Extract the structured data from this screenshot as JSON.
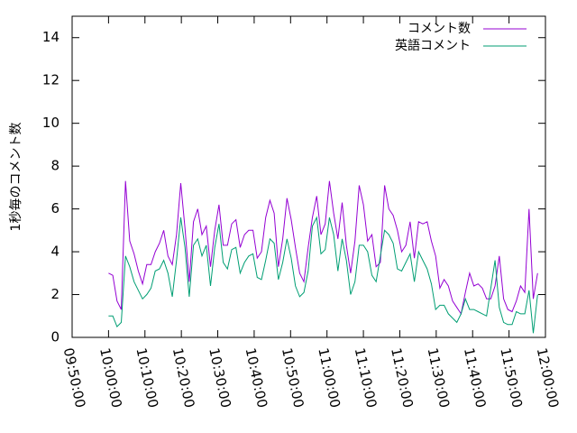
{
  "chart_data": {
    "type": "line",
    "ylabel": "1秒毎のコメント数",
    "x": [
      "10:00:00",
      "10:01:10",
      "10:02:20",
      "10:03:30",
      "10:04:40",
      "10:05:50",
      "10:07:00",
      "10:08:10",
      "10:09:20",
      "10:10:30",
      "10:11:40",
      "10:12:50",
      "10:14:00",
      "10:15:10",
      "10:16:20",
      "10:17:30",
      "10:18:40",
      "10:19:50",
      "10:21:00",
      "10:22:10",
      "10:23:20",
      "10:24:30",
      "10:25:40",
      "10:26:50",
      "10:28:00",
      "10:29:10",
      "10:30:20",
      "10:31:30",
      "10:32:40",
      "10:33:50",
      "10:35:00",
      "10:36:10",
      "10:37:20",
      "10:38:30",
      "10:39:40",
      "10:40:50",
      "10:42:00",
      "10:43:10",
      "10:44:20",
      "10:45:30",
      "10:46:40",
      "10:47:50",
      "10:49:00",
      "10:50:10",
      "10:51:20",
      "10:52:30",
      "10:53:40",
      "10:54:50",
      "10:56:00",
      "10:57:10",
      "10:58:20",
      "10:59:30",
      "11:00:40",
      "11:01:50",
      "11:03:00",
      "11:04:10",
      "11:05:20",
      "11:06:30",
      "11:07:40",
      "11:08:50",
      "11:10:00",
      "11:11:10",
      "11:12:20",
      "11:13:30",
      "11:14:40",
      "11:15:50",
      "11:17:00",
      "11:18:10",
      "11:19:20",
      "11:20:30",
      "11:21:40",
      "11:22:50",
      "11:24:00",
      "11:25:10",
      "11:26:20",
      "11:27:30",
      "11:28:40",
      "11:29:50",
      "11:31:00",
      "11:32:10",
      "11:33:20",
      "11:34:30",
      "11:35:40",
      "11:36:50",
      "11:38:00",
      "11:39:10",
      "11:40:20",
      "11:41:30",
      "11:42:40",
      "11:43:50",
      "11:45:00",
      "11:46:10",
      "11:47:20",
      "11:48:30",
      "11:49:40",
      "11:50:50",
      "11:52:00",
      "11:53:10",
      "11:54:20",
      "11:55:30",
      "11:56:40",
      "11:57:50"
    ],
    "series": [
      {
        "name": "コメント数",
        "color": "#9400d3",
        "values": [
          3.0,
          2.9,
          1.7,
          1.3,
          7.3,
          4.5,
          3.9,
          3.1,
          2.5,
          3.4,
          3.4,
          4.0,
          4.4,
          5.0,
          3.8,
          3.4,
          4.8,
          7.2,
          5.1,
          2.6,
          5.4,
          6.0,
          4.8,
          5.2,
          3.3,
          5.0,
          6.2,
          4.3,
          4.3,
          5.3,
          5.5,
          4.2,
          4.8,
          5.0,
          5.0,
          3.7,
          4.0,
          5.6,
          6.4,
          5.8,
          3.3,
          4.6,
          6.5,
          5.5,
          4.2,
          3.0,
          2.6,
          4.2,
          5.6,
          6.6,
          4.8,
          5.3,
          7.3,
          5.8,
          4.6,
          6.3,
          4.3,
          3.0,
          4.5,
          7.1,
          6.2,
          4.5,
          4.8,
          3.3,
          3.5,
          7.1,
          6.0,
          5.7,
          5.0,
          4.0,
          4.3,
          5.4,
          3.7,
          5.4,
          5.3,
          5.4,
          4.5,
          3.8,
          2.3,
          2.7,
          2.4,
          1.7,
          1.4,
          1.1,
          2.1,
          3.0,
          2.4,
          2.5,
          2.3,
          1.8,
          1.8,
          2.4,
          3.8,
          1.8,
          1.3,
          1.2,
          1.7,
          2.4,
          2.1,
          6.0,
          1.8,
          3.0
        ]
      },
      {
        "name": "英語コメント",
        "color": "#009e73",
        "values": [
          1.0,
          1.0,
          0.5,
          0.7,
          3.8,
          3.3,
          2.6,
          2.2,
          1.8,
          2.0,
          2.3,
          3.1,
          3.2,
          3.6,
          3.0,
          1.9,
          3.6,
          5.6,
          4.2,
          1.9,
          4.3,
          4.6,
          3.8,
          4.3,
          2.4,
          4.2,
          5.3,
          3.5,
          3.2,
          4.1,
          4.2,
          3.0,
          3.5,
          3.8,
          3.9,
          2.8,
          2.7,
          3.6,
          4.6,
          4.4,
          2.7,
          3.5,
          4.6,
          3.7,
          2.4,
          1.9,
          2.1,
          3.1,
          5.2,
          5.6,
          3.9,
          4.1,
          5.6,
          4.8,
          3.1,
          4.6,
          3.6,
          2.0,
          2.6,
          4.3,
          4.3,
          4.0,
          2.9,
          2.6,
          3.8,
          5.0,
          4.8,
          4.4,
          3.2,
          3.1,
          3.5,
          3.9,
          2.6,
          4.0,
          3.6,
          3.2,
          2.5,
          1.3,
          1.5,
          1.5,
          1.1,
          0.9,
          0.7,
          1.1,
          1.8,
          1.3,
          1.3,
          1.2,
          1.1,
          1.0,
          2.3,
          3.6,
          1.4,
          0.7,
          0.6,
          0.6,
          1.2,
          1.1,
          1.1,
          2.2,
          0.2,
          2.0
        ]
      }
    ],
    "xlim": [
      "09:50:00",
      "12:00:00"
    ],
    "xticks": [
      "09:50:00",
      "10:00:00",
      "10:10:00",
      "10:20:00",
      "10:30:00",
      "10:40:00",
      "10:50:00",
      "11:00:00",
      "11:10:00",
      "11:20:00",
      "11:30:00",
      "11:40:00",
      "11:50:00",
      "12:00:00"
    ],
    "ylim": [
      0,
      15
    ],
    "yticks": [
      0,
      2,
      4,
      6,
      8,
      10,
      12,
      14
    ],
    "legend": "top-right"
  }
}
